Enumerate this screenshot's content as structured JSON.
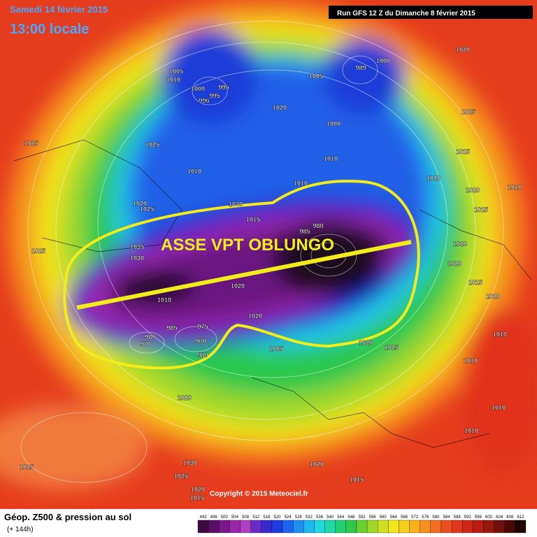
{
  "header": {
    "date": "Samedi 14 février 2015",
    "time": "13:00 locale",
    "run": "Run GFS 12 Z du Dimanche 8 février 2015"
  },
  "annotation": "ASSE VPT OBLUNGO",
  "copyright": "Copyright © 2015 Meteociel.fr",
  "legend": {
    "title": "Géop. Z500 & pression au sol",
    "subtitle": "(+ 144h)",
    "scale": [
      492,
      496,
      500,
      504,
      508,
      512,
      516,
      520,
      524,
      528,
      532,
      536,
      540,
      544,
      548,
      552,
      556,
      560,
      564,
      568,
      572,
      576,
      580,
      584,
      588,
      592,
      596,
      600,
      604,
      608,
      612
    ]
  },
  "isobar_labels": [
    1005,
    1010,
    995,
    1000,
    996,
    995,
    1005,
    989,
    1000,
    1020,
    1000,
    1020,
    1025,
    1015,
    1025,
    1010,
    1010,
    1015,
    1020,
    1010,
    1020,
    1010,
    1020,
    1025,
    1030,
    1015,
    1015,
    980,
    985,
    1025,
    1035,
    1030,
    1020,
    1020,
    1020,
    1010,
    1020,
    985,
    975,
    980,
    970,
    960,
    980,
    1005,
    1020,
    1025,
    1015,
    1020,
    1010,
    1010,
    1020,
    1010,
    1015,
    1030,
    1025,
    1020,
    1015,
    1020,
    1015,
    1010
  ]
}
